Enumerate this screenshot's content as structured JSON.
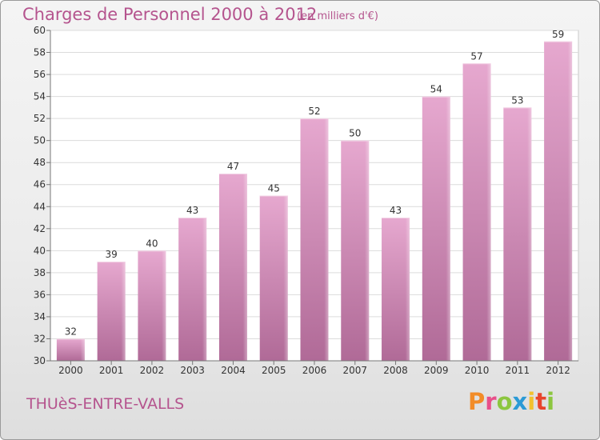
{
  "header": {
    "title": "Charges de Personnel 2000 à 2012",
    "subtitle": "(en milliers d'€)"
  },
  "footer": {
    "commune": "THUèS-ENTRE-VALLS",
    "logo_text": "Proxiti",
    "logo_colors": [
      "#f28c28",
      "#e84f8a",
      "#8cc63f",
      "#2b9ad6",
      "#f2c12e",
      "#e8452c",
      "#8cc63f"
    ]
  },
  "chart_data": {
    "type": "bar",
    "title": "Charges de Personnel 2000 à 2012",
    "subtitle": "(en milliers d'€)",
    "categories": [
      "2000",
      "2001",
      "2002",
      "2003",
      "2004",
      "2005",
      "2006",
      "2007",
      "2008",
      "2009",
      "2010",
      "2011",
      "2012"
    ],
    "values": [
      32,
      39,
      40,
      43,
      47,
      45,
      52,
      50,
      43,
      54,
      57,
      53,
      59
    ],
    "ylim": [
      30,
      60
    ],
    "yticks": [
      30,
      32,
      34,
      36,
      38,
      40,
      42,
      44,
      46,
      48,
      50,
      52,
      54,
      56,
      58,
      60
    ],
    "grid": true,
    "bar_color_top": "#e6a8cf",
    "bar_color_bottom": "#b06a97"
  }
}
